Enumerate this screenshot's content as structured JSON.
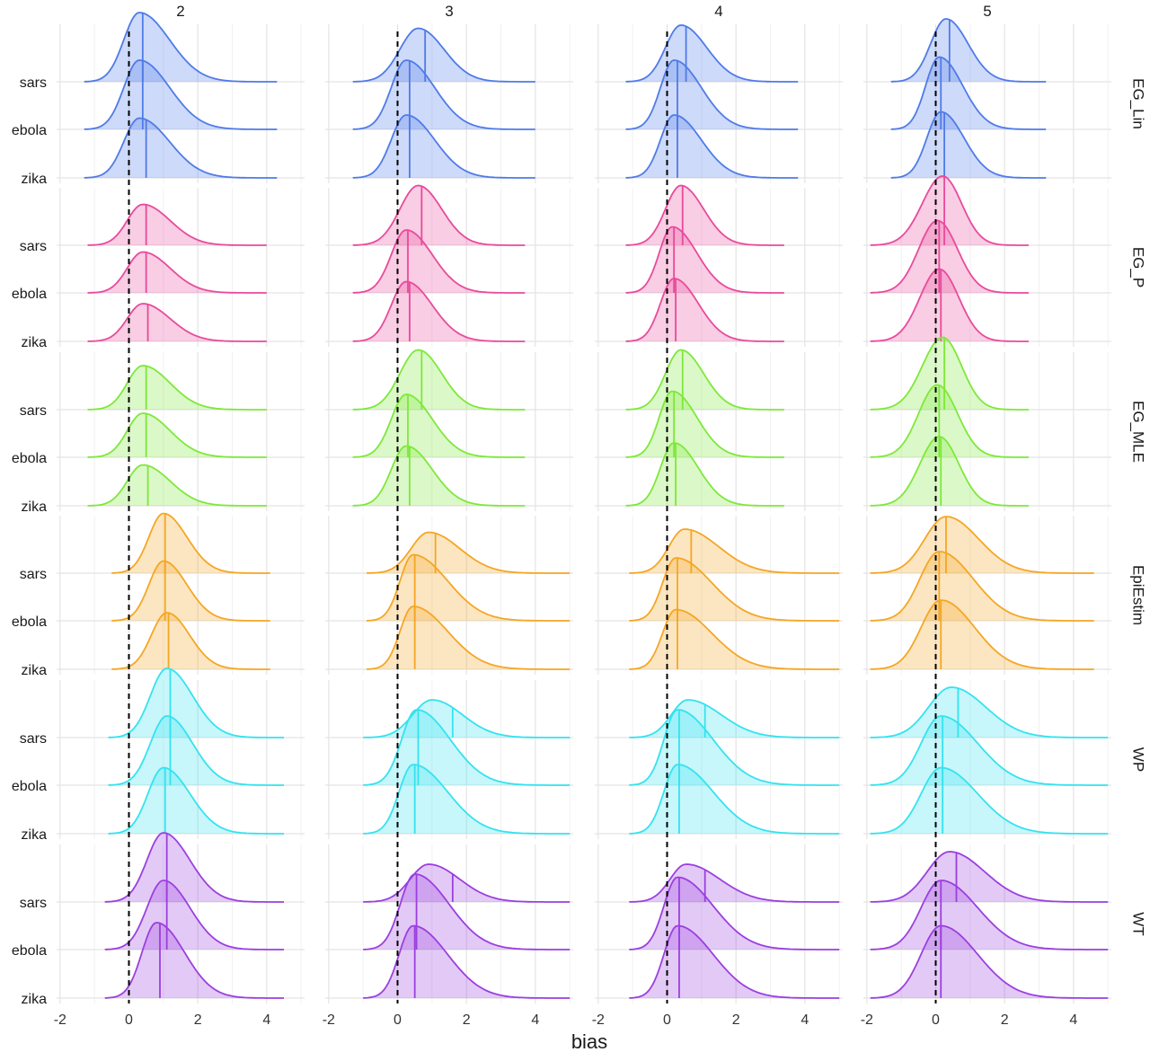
{
  "chart_data": {
    "type": "ridgeline",
    "xlabel": "bias",
    "ylabel": "",
    "xlim": [
      -2.1,
      5.1
    ],
    "x_ticks": [
      -2,
      0,
      2,
      4
    ],
    "x_tick_labels": [
      "-2",
      "0",
      "2",
      "4"
    ],
    "reference_line_x": 0,
    "columns": [
      "2",
      "3",
      "4",
      "5"
    ],
    "rows": [
      {
        "name": "EG_Lin",
        "color": "#4f7be8"
      },
      {
        "name": "EG_P",
        "color": "#e84a9c"
      },
      {
        "name": "EG_MLE",
        "color": "#7ee83a"
      },
      {
        "name": "EpiEstim",
        "color": "#f5a623"
      },
      {
        "name": "WP",
        "color": "#35e2ef"
      },
      {
        "name": "WT",
        "color": "#9b3fe0"
      }
    ],
    "categories": [
      "sars",
      "ebola",
      "zika"
    ],
    "grid": true,
    "ridges": [
      [
        [
          {
            "mode": 0.3,
            "median": 0.4,
            "range": [
              -1.3,
              4.3
            ],
            "height": 1.1
          },
          {
            "mode": 0.3,
            "median": 0.4,
            "range": [
              -1.3,
              4.3
            ],
            "height": 1.1
          },
          {
            "mode": 0.3,
            "median": 0.5,
            "range": [
              -1.3,
              4.3
            ],
            "height": 0.95
          }
        ],
        [
          {
            "mode": 0.6,
            "median": 0.8,
            "range": [
              -1.3,
              4.0
            ],
            "height": 0.85
          },
          {
            "mode": 0.25,
            "median": 0.35,
            "range": [
              -1.3,
              4.0
            ],
            "height": 1.1
          },
          {
            "mode": 0.25,
            "median": 0.35,
            "range": [
              -1.3,
              4.0
            ],
            "height": 1.0
          }
        ],
        [
          {
            "mode": 0.4,
            "median": 0.55,
            "range": [
              -1.2,
              3.8
            ],
            "height": 0.9
          },
          {
            "mode": 0.2,
            "median": 0.3,
            "range": [
              -1.2,
              3.8
            ],
            "height": 1.1
          },
          {
            "mode": 0.2,
            "median": 0.3,
            "range": [
              -1.2,
              3.8
            ],
            "height": 1.0
          }
        ],
        [
          {
            "mode": 0.3,
            "median": 0.4,
            "range": [
              -1.3,
              3.2
            ],
            "height": 1.0
          },
          {
            "mode": 0.1,
            "median": 0.15,
            "range": [
              -1.3,
              3.2
            ],
            "height": 1.15
          },
          {
            "mode": 0.15,
            "median": 0.25,
            "range": [
              -1.3,
              3.2
            ],
            "height": 1.05
          }
        ]
      ],
      [
        [
          {
            "mode": 0.4,
            "median": 0.5,
            "range": [
              -1.2,
              4.0
            ],
            "height": 0.65
          },
          {
            "mode": 0.4,
            "median": 0.5,
            "range": [
              -1.2,
              4.0
            ],
            "height": 0.65
          },
          {
            "mode": 0.4,
            "median": 0.55,
            "range": [
              -1.2,
              4.0
            ],
            "height": 0.6
          }
        ],
        [
          {
            "mode": 0.6,
            "median": 0.7,
            "range": [
              -1.3,
              3.7
            ],
            "height": 0.95
          },
          {
            "mode": 0.25,
            "median": 0.3,
            "range": [
              -1.3,
              3.7
            ],
            "height": 1.0
          },
          {
            "mode": 0.25,
            "median": 0.35,
            "range": [
              -1.3,
              3.7
            ],
            "height": 0.95
          }
        ],
        [
          {
            "mode": 0.4,
            "median": 0.45,
            "range": [
              -1.2,
              3.4
            ],
            "height": 0.95
          },
          {
            "mode": 0.15,
            "median": 0.2,
            "range": [
              -1.2,
              3.4
            ],
            "height": 1.05
          },
          {
            "mode": 0.2,
            "median": 0.25,
            "range": [
              -1.2,
              3.4
            ],
            "height": 1.0
          }
        ],
        [
          {
            "mode": 0.2,
            "median": 0.25,
            "range": [
              -1.9,
              2.7
            ],
            "height": 1.1
          },
          {
            "mode": 0.05,
            "median": 0.1,
            "range": [
              -1.9,
              2.7
            ],
            "height": 1.15
          },
          {
            "mode": 0.1,
            "median": 0.15,
            "range": [
              -1.9,
              2.7
            ],
            "height": 1.15
          }
        ]
      ],
      [
        [
          {
            "mode": 0.4,
            "median": 0.5,
            "range": [
              -1.2,
              4.0
            ],
            "height": 0.7
          },
          {
            "mode": 0.4,
            "median": 0.5,
            "range": [
              -1.2,
              4.0
            ],
            "height": 0.7
          },
          {
            "mode": 0.4,
            "median": 0.55,
            "range": [
              -1.2,
              4.0
            ],
            "height": 0.65
          }
        ],
        [
          {
            "mode": 0.6,
            "median": 0.7,
            "range": [
              -1.3,
              3.7
            ],
            "height": 0.95
          },
          {
            "mode": 0.25,
            "median": 0.3,
            "range": [
              -1.3,
              3.7
            ],
            "height": 1.0
          },
          {
            "mode": 0.25,
            "median": 0.35,
            "range": [
              -1.3,
              3.7
            ],
            "height": 0.95
          }
        ],
        [
          {
            "mode": 0.4,
            "median": 0.45,
            "range": [
              -1.2,
              3.4
            ],
            "height": 0.95
          },
          {
            "mode": 0.15,
            "median": 0.2,
            "range": [
              -1.2,
              3.4
            ],
            "height": 1.05
          },
          {
            "mode": 0.2,
            "median": 0.25,
            "range": [
              -1.2,
              3.4
            ],
            "height": 1.0
          }
        ],
        [
          {
            "mode": 0.2,
            "median": 0.25,
            "range": [
              -1.9,
              2.7
            ],
            "height": 1.15
          },
          {
            "mode": 0.05,
            "median": 0.1,
            "range": [
              -1.9,
              2.7
            ],
            "height": 1.15
          },
          {
            "mode": 0.1,
            "median": 0.15,
            "range": [
              -1.9,
              2.7
            ],
            "height": 1.1
          }
        ]
      ],
      [
        [
          {
            "mode": 1.0,
            "median": 1.05,
            "range": [
              -0.5,
              4.1
            ],
            "height": 0.95
          },
          {
            "mode": 1.0,
            "median": 1.05,
            "range": [
              -0.5,
              4.1
            ],
            "height": 0.95
          },
          {
            "mode": 1.1,
            "median": 1.15,
            "range": [
              -0.5,
              4.1
            ],
            "height": 0.9
          }
        ],
        [
          {
            "mode": 0.9,
            "median": 1.1,
            "range": [
              -0.9,
              5.0
            ],
            "height": 0.65
          },
          {
            "mode": 0.45,
            "median": 0.5,
            "range": [
              -0.9,
              5.0
            ],
            "height": 1.05
          },
          {
            "mode": 0.45,
            "median": 0.5,
            "range": [
              -0.9,
              5.0
            ],
            "height": 1.0
          }
        ],
        [
          {
            "mode": 0.5,
            "median": 0.7,
            "range": [
              -1.1,
              5.0
            ],
            "height": 0.7
          },
          {
            "mode": 0.25,
            "median": 0.3,
            "range": [
              -1.1,
              5.0
            ],
            "height": 1.0
          },
          {
            "mode": 0.25,
            "median": 0.3,
            "range": [
              -1.1,
              5.0
            ],
            "height": 0.95
          }
        ],
        [
          {
            "mode": 0.3,
            "median": 0.3,
            "range": [
              -1.9,
              4.6
            ],
            "height": 0.9
          },
          {
            "mode": 0.1,
            "median": 0.1,
            "range": [
              -1.9,
              4.6
            ],
            "height": 1.1
          },
          {
            "mode": 0.15,
            "median": 0.15,
            "range": [
              -1.9,
              4.6
            ],
            "height": 1.1
          }
        ]
      ],
      [
        [
          {
            "mode": 1.1,
            "median": 1.2,
            "range": [
              -0.6,
              4.5
            ],
            "height": 1.1
          },
          {
            "mode": 1.1,
            "median": 1.2,
            "range": [
              -0.6,
              4.5
            ],
            "height": 1.1
          },
          {
            "mode": 1.0,
            "median": 1.05,
            "range": [
              -0.6,
              4.5
            ],
            "height": 1.05
          }
        ],
        [
          {
            "mode": 1.0,
            "median": 1.6,
            "range": [
              -1.0,
              5.0
            ],
            "height": 0.6
          },
          {
            "mode": 0.55,
            "median": 0.6,
            "range": [
              -1.0,
              5.0
            ],
            "height": 1.2
          },
          {
            "mode": 0.45,
            "median": 0.5,
            "range": [
              -1.0,
              5.0
            ],
            "height": 1.1
          }
        ],
        [
          {
            "mode": 0.6,
            "median": 1.1,
            "range": [
              -1.1,
              5.0
            ],
            "height": 0.6
          },
          {
            "mode": 0.3,
            "median": 0.35,
            "range": [
              -1.1,
              5.0
            ],
            "height": 1.2
          },
          {
            "mode": 0.3,
            "median": 0.35,
            "range": [
              -1.1,
              5.0
            ],
            "height": 1.1
          }
        ],
        [
          {
            "mode": 0.45,
            "median": 0.65,
            "range": [
              -1.9,
              5.0
            ],
            "height": 0.8
          },
          {
            "mode": 0.15,
            "median": 0.2,
            "range": [
              -1.9,
              5.0
            ],
            "height": 1.1
          },
          {
            "mode": 0.15,
            "median": 0.2,
            "range": [
              -1.9,
              5.0
            ],
            "height": 1.05
          }
        ]
      ],
      [
        [
          {
            "mode": 1.0,
            "median": 1.1,
            "range": [
              -0.7,
              4.5
            ],
            "height": 1.1
          },
          {
            "mode": 1.0,
            "median": 1.1,
            "range": [
              -0.7,
              4.5
            ],
            "height": 1.1
          },
          {
            "mode": 0.8,
            "median": 0.9,
            "range": [
              -0.7,
              4.5
            ],
            "height": 1.2
          }
        ],
        [
          {
            "mode": 0.9,
            "median": 1.6,
            "range": [
              -1.0,
              5.0
            ],
            "height": 0.6
          },
          {
            "mode": 0.5,
            "median": 0.55,
            "range": [
              -1.0,
              5.0
            ],
            "height": 1.2
          },
          {
            "mode": 0.45,
            "median": 0.5,
            "range": [
              -1.0,
              5.0
            ],
            "height": 1.15
          }
        ],
        [
          {
            "mode": 0.55,
            "median": 1.1,
            "range": [
              -1.1,
              5.0
            ],
            "height": 0.6
          },
          {
            "mode": 0.3,
            "median": 0.35,
            "range": [
              -1.1,
              5.0
            ],
            "height": 1.15
          },
          {
            "mode": 0.3,
            "median": 0.35,
            "range": [
              -1.1,
              5.0
            ],
            "height": 1.15
          }
        ],
        [
          {
            "mode": 0.4,
            "median": 0.6,
            "range": [
              -1.9,
              5.0
            ],
            "height": 0.8
          },
          {
            "mode": 0.15,
            "median": 0.15,
            "range": [
              -1.9,
              5.0
            ],
            "height": 1.1
          },
          {
            "mode": 0.15,
            "median": 0.15,
            "range": [
              -1.9,
              5.0
            ],
            "height": 1.15
          }
        ]
      ]
    ]
  }
}
